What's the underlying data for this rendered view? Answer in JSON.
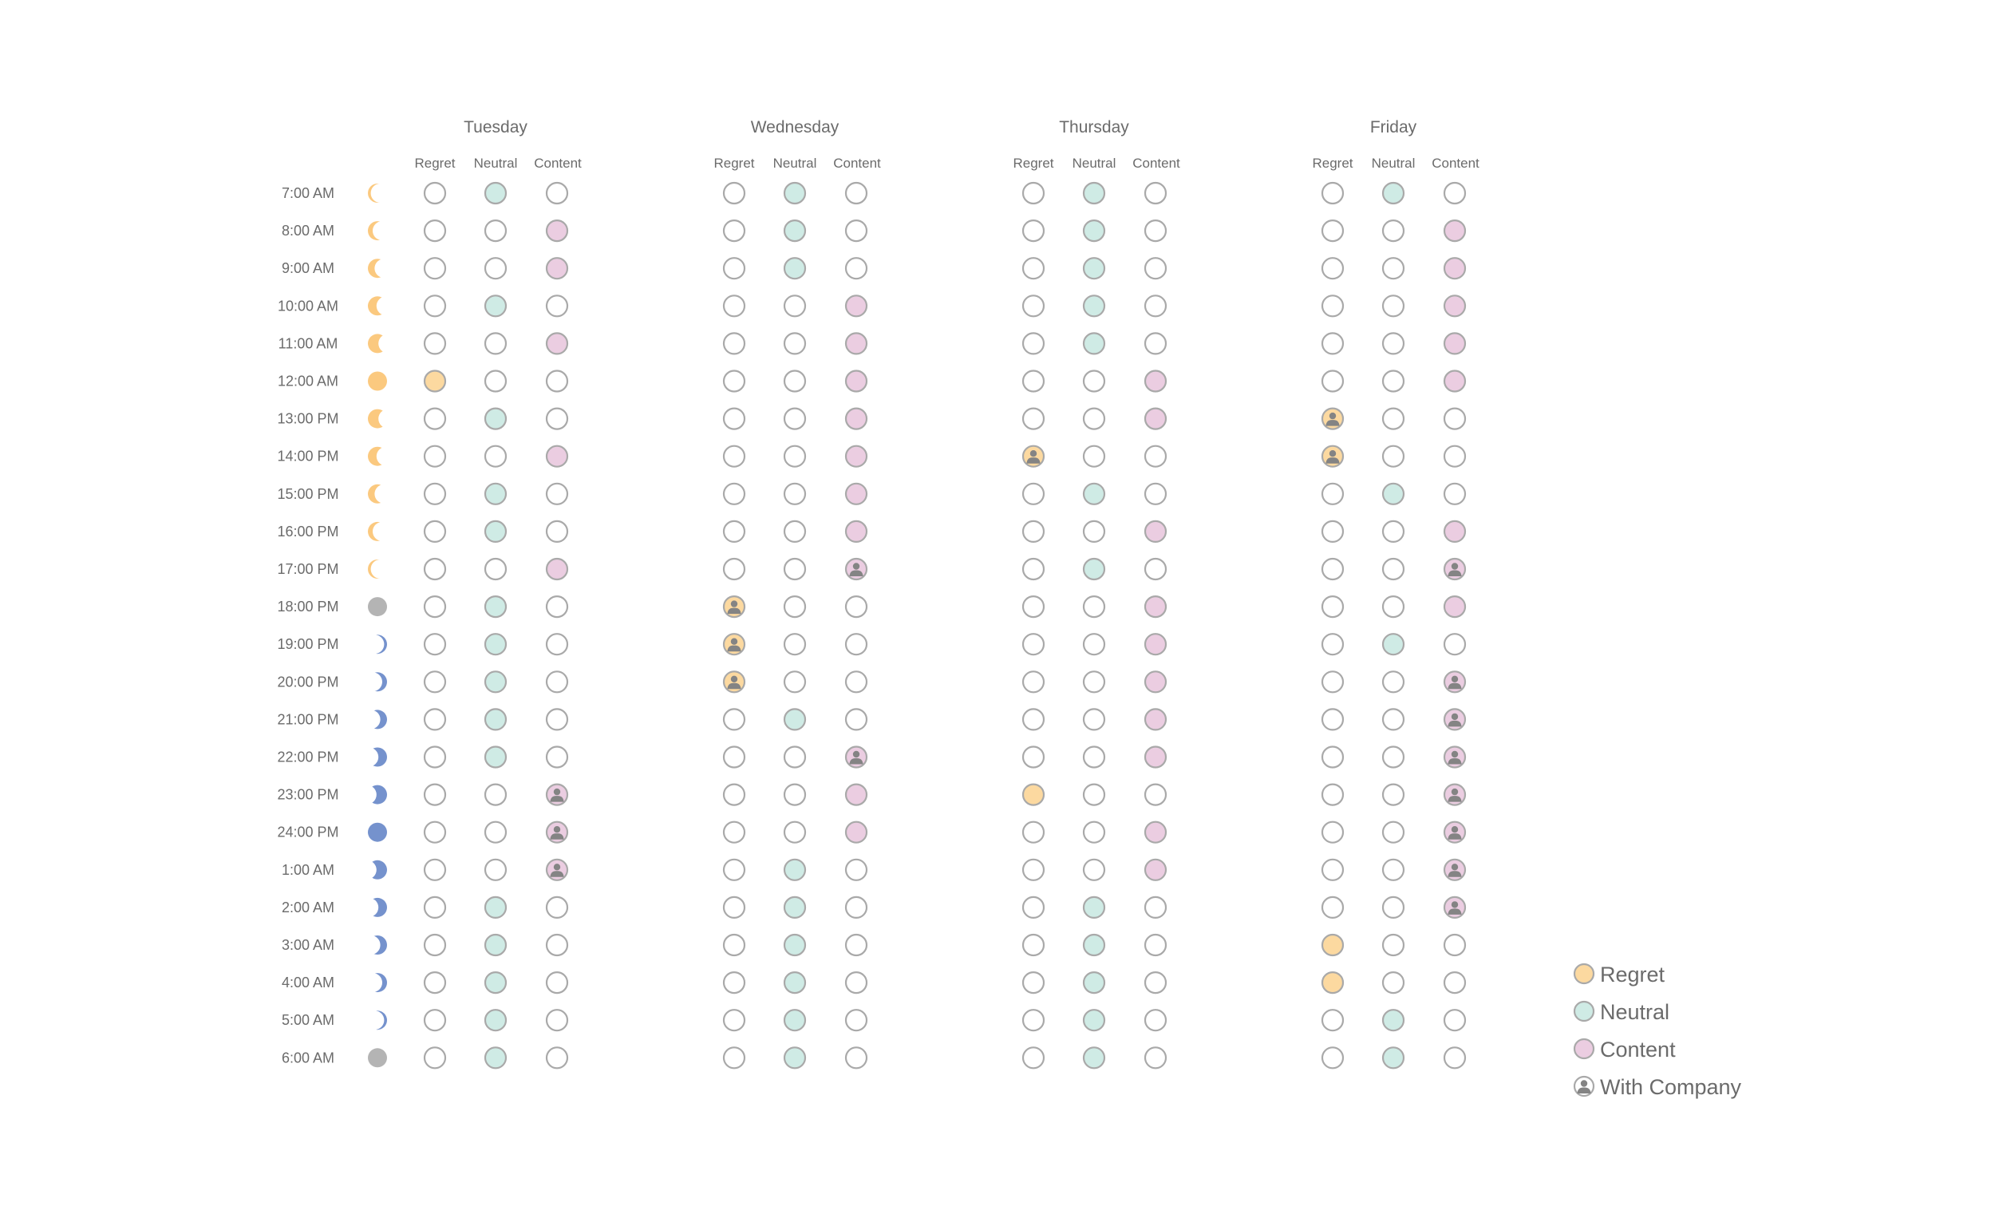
{
  "colors": {
    "regret": "#fcd9a0",
    "neutral": "#cfebe5",
    "content": "#ebcde1",
    "empty_stroke": "#a9a9a9",
    "person": "#848484",
    "sun": "#fbc97f",
    "moon": "#7592cd",
    "dark": "#b4b4b4"
  },
  "chart_data": {
    "type": "dot-matrix",
    "title": "",
    "days": [
      "Tuesday",
      "Wednesday",
      "Thursday",
      "Friday"
    ],
    "columns": [
      "Regret",
      "Neutral",
      "Content"
    ],
    "times": [
      "7:00 AM",
      "8:00 AM",
      "9:00 AM",
      "10:00 AM",
      "11:00 AM",
      "12:00 AM",
      "13:00 PM",
      "14:00 PM",
      "15:00 PM",
      "16:00 PM",
      "17:00 PM",
      "18:00 PM",
      "19:00 PM",
      "20:00 PM",
      "21:00 PM",
      "22:00 PM",
      "23:00 PM",
      "24:00 PM",
      "1:00 AM",
      "2:00 AM",
      "3:00 AM",
      "4:00 AM",
      "5:00 AM",
      "6:00 AM"
    ],
    "phase_icons": [
      {
        "type": "sun",
        "fraction": 0.15
      },
      {
        "type": "sun",
        "fraction": 0.25
      },
      {
        "type": "sun",
        "fraction": 0.35
      },
      {
        "type": "sun",
        "fraction": 0.45
      },
      {
        "type": "sun",
        "fraction": 0.55
      },
      {
        "type": "sun",
        "fraction": 1.0
      },
      {
        "type": "sun",
        "fraction": 0.55
      },
      {
        "type": "sun",
        "fraction": 0.45
      },
      {
        "type": "sun",
        "fraction": 0.35
      },
      {
        "type": "sun",
        "fraction": 0.25
      },
      {
        "type": "sun",
        "fraction": 0.15
      },
      {
        "type": "dark",
        "fraction": 1.0
      },
      {
        "type": "moon",
        "fraction": 0.15
      },
      {
        "type": "moon",
        "fraction": 0.25
      },
      {
        "type": "moon",
        "fraction": 0.35
      },
      {
        "type": "moon",
        "fraction": 0.45
      },
      {
        "type": "moon",
        "fraction": 0.55
      },
      {
        "type": "moon",
        "fraction": 1.0
      },
      {
        "type": "moon",
        "fraction": 0.55
      },
      {
        "type": "moon",
        "fraction": 0.45
      },
      {
        "type": "moon",
        "fraction": 0.35
      },
      {
        "type": "moon",
        "fraction": 0.25
      },
      {
        "type": "moon",
        "fraction": 0.15
      },
      {
        "type": "dark",
        "fraction": 1.0
      }
    ],
    "entries": {
      "Tuesday": [
        "N",
        "C",
        "C",
        "N",
        "C",
        "R",
        "N",
        "C",
        "N",
        "N",
        "C",
        "N",
        "N",
        "N",
        "N",
        "N",
        "C*",
        "C*",
        "C*",
        "N",
        "N",
        "N",
        "N",
        "N"
      ],
      "Wednesday": [
        "N",
        "N",
        "N",
        "C",
        "C",
        "C",
        "C",
        "C",
        "C",
        "C",
        "C*",
        "R*",
        "R*",
        "R*",
        "N",
        "C*",
        "C",
        "C",
        "N",
        "N",
        "N",
        "N",
        "N",
        "N"
      ],
      "Thursday": [
        "N",
        "N",
        "N",
        "N",
        "N",
        "C",
        "C",
        "R*",
        "N",
        "C",
        "N",
        "C",
        "C",
        "C",
        "C",
        "C",
        "R",
        "C",
        "C",
        "N",
        "N",
        "N",
        "N",
        "N"
      ],
      "Friday": [
        "N",
        "C",
        "C",
        "C",
        "C",
        "C",
        "R*",
        "R*",
        "N",
        "C",
        "C*",
        "C",
        "N",
        "C*",
        "C*",
        "C*",
        "C*",
        "C*",
        "C*",
        "C*",
        "R",
        "R",
        "N",
        "N"
      ]
    },
    "entry_codes": {
      "R": "Regret",
      "N": "Neutral",
      "C": "Content",
      "*": "With Company"
    },
    "legend": {
      "position": "bottom-right",
      "items": [
        {
          "key": "regret",
          "label": "Regret"
        },
        {
          "key": "neutral",
          "label": "Neutral"
        },
        {
          "key": "content",
          "label": "Content"
        },
        {
          "key": "company",
          "label": "With Company"
        }
      ]
    }
  }
}
